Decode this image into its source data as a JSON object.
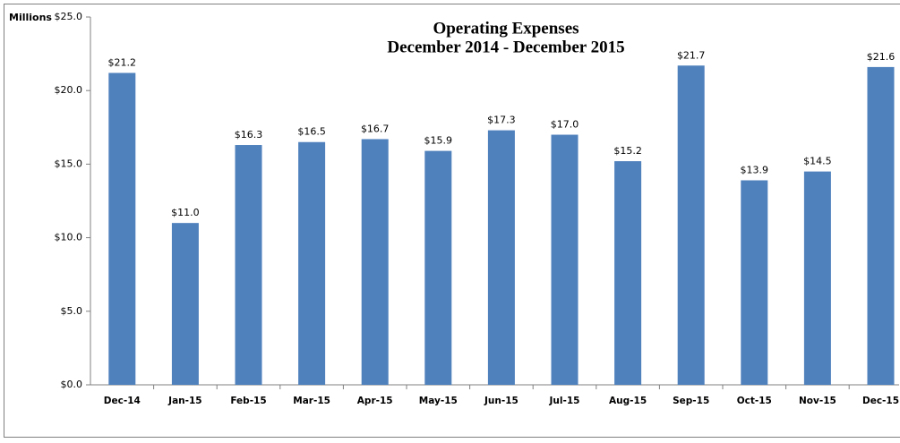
{
  "chart_data": {
    "type": "bar",
    "title": "Operating Expenses",
    "subtitle": "December 2014 - December 2015",
    "y_label": "Millions",
    "categories": [
      "Dec-14",
      "Jan-15",
      "Feb-15",
      "Mar-15",
      "Apr-15",
      "May-15",
      "Jun-15",
      "Jul-15",
      "Aug-15",
      "Sep-15",
      "Oct-15",
      "Nov-15",
      "Dec-15"
    ],
    "values": [
      21.2,
      11.0,
      16.3,
      16.5,
      16.7,
      15.9,
      17.3,
      17.0,
      15.2,
      21.7,
      13.9,
      14.5,
      21.6
    ],
    "value_labels": [
      "$21.2",
      "$11.0",
      "$16.3",
      "$16.5",
      "$16.7",
      "$15.9",
      "$17.3",
      "$17.0",
      "$15.2",
      "$21.7",
      "$13.9",
      "$14.5",
      "$21.6"
    ],
    "color": "#4f81bd",
    "ylim": [
      0,
      25
    ],
    "yticks": [
      {
        "value": 0,
        "label": "$0.0"
      },
      {
        "value": 5,
        "label": "$5.0"
      },
      {
        "value": 10,
        "label": "$10.0"
      },
      {
        "value": 15,
        "label": "$15.0"
      },
      {
        "value": 20,
        "label": "$20.0"
      },
      {
        "value": 25,
        "label": "$25.0"
      }
    ],
    "grid": false
  }
}
